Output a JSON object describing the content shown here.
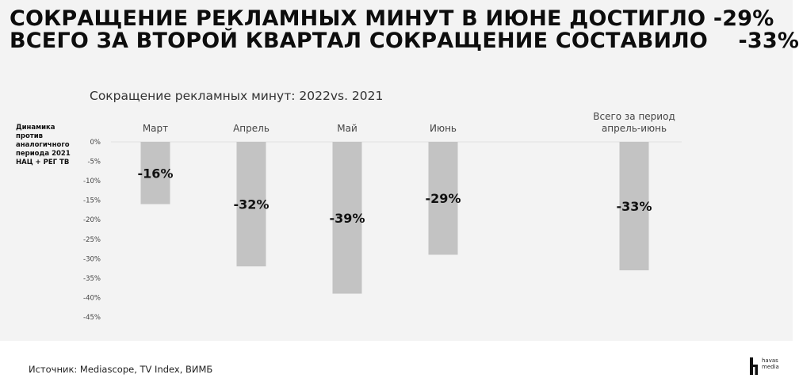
{
  "headline": {
    "line1": "СОКРАЩЕНИЕ РЕКЛАМНЫХ МИНУТ В ИЮНЕ ДОСТИГЛО -29%",
    "line2": "ВСЕГО ЗА ВТОРОЙ КВАРТАЛ СОКРАЩЕНИЕ СОСТАВИЛО    -33%"
  },
  "side_label": "Динамика против аналогичного периода 2021 НАЦ + РЕГ ТВ",
  "footer": {
    "source": "Источник: Mediascope, TV Index, ВИМБ"
  },
  "logo": {
    "line1": "havas",
    "line2": "media"
  },
  "colors": {
    "bar": "#c3c3c3",
    "grid": "#e0e0e0",
    "background": "#f3f3f3"
  },
  "chart_data": {
    "type": "bar",
    "title": "Сокращение рекламных минут: 2022vs. 2021",
    "categories": [
      "Март",
      "Апрель",
      "Май",
      "Июнь",
      "Всего за период апрель-июнь"
    ],
    "category_lines": [
      [
        "Март"
      ],
      [
        "Апрель"
      ],
      [
        "Май"
      ],
      [
        "Июнь"
      ],
      [
        "Всего за период",
        "апрель-июнь"
      ]
    ],
    "values": [
      -16,
      -32,
      -39,
      -29,
      -33
    ],
    "data_labels": [
      "-16%",
      "-32%",
      "-39%",
      "-29%",
      "-33%"
    ],
    "ylabel": "Динамика против аналогичного периода 2021 НАЦ + РЕГ ТВ",
    "yticks": [
      0,
      -5,
      -10,
      -15,
      -20,
      -25,
      -30,
      -35,
      -40,
      -45
    ],
    "ytick_labels": [
      "0%",
      "-5%",
      "-10%",
      "-15%",
      "-20%",
      "-25%",
      "-30%",
      "-35%",
      "-40%",
      "-45%"
    ],
    "ylim": [
      -45,
      0
    ],
    "grid": false,
    "legend": "none"
  }
}
